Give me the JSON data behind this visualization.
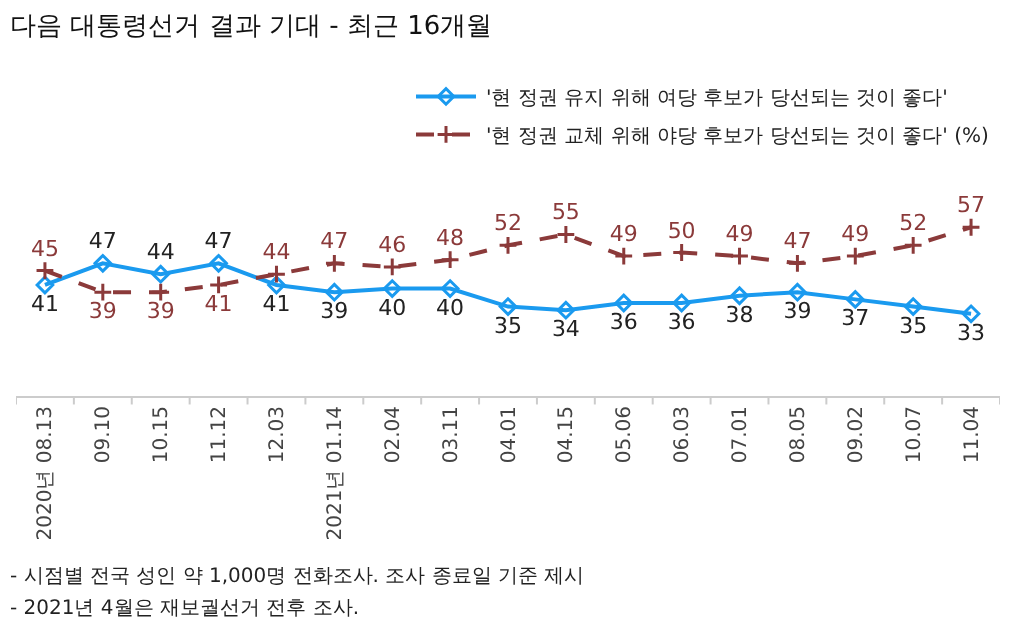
{
  "chart_data": {
    "type": "line",
    "title": "다음 대통령선거 결과 기대 - 최근 16개월",
    "categories": [
      "2020년 08.13",
      "09.10",
      "10.15",
      "11.12",
      "12.03",
      "2021년 01.14",
      "02.04",
      "03.11",
      "04.01",
      "04.15",
      "05.06",
      "06.03",
      "07.01",
      "08.05",
      "09.02",
      "10.07",
      "11.04"
    ],
    "series": [
      {
        "name": "'현 정권 유지 위해 여당 후보가 당선되는 것이 좋다'",
        "color": "#1a9aef",
        "marker": "diamond",
        "line_style": "solid",
        "values": [
          41,
          47,
          44,
          47,
          41,
          39,
          40,
          40,
          35,
          34,
          36,
          36,
          38,
          39,
          37,
          35,
          33
        ]
      },
      {
        "name": "'현 정권 교체 위해 야당 후보가 당선되는 것이 좋다' (%)",
        "color": "#8b3a3a",
        "marker": "cross",
        "line_style": "dashed",
        "values": [
          45,
          39,
          39,
          41,
          44,
          47,
          46,
          48,
          52,
          55,
          49,
          50,
          49,
          47,
          49,
          52,
          57
        ]
      }
    ],
    "data_labels": true,
    "legend": "top right",
    "annotations": [
      "- 시점별 전국 성인 약 1,000명 전화조사. 조사 종료일 기준 제시",
      "- 2021년 4월은 재보궐선거 전후 조사."
    ]
  }
}
